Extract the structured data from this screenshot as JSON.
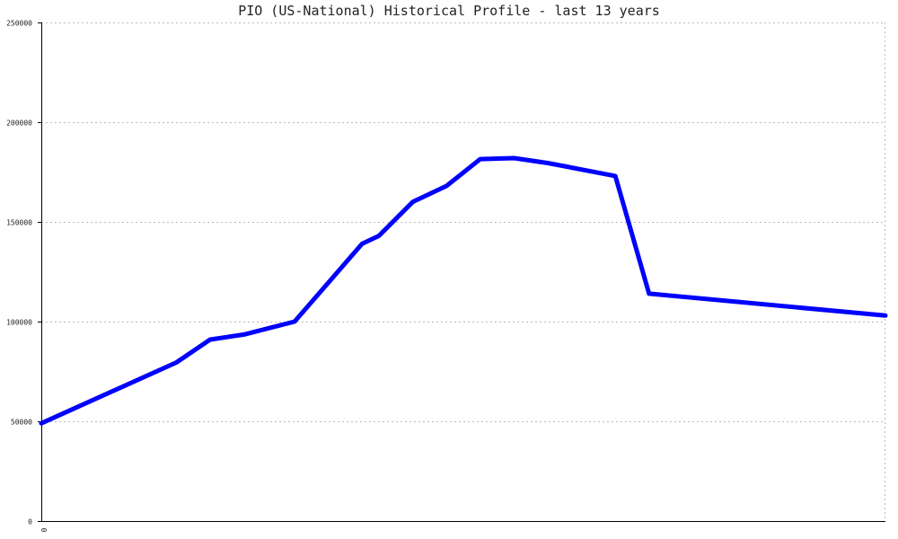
{
  "chart_data": {
    "type": "line",
    "title": "PIO (US-National) Historical Profile - last 13 years",
    "xlabel": "",
    "ylabel": "",
    "ylim": [
      0,
      250000
    ],
    "y_ticks": [
      0,
      50000,
      100000,
      150000,
      200000,
      250000
    ],
    "y_tick_labels": [
      "0",
      "50000",
      "100000",
      "150000",
      "200000",
      "250000"
    ],
    "x_tick_labels": [
      "0"
    ],
    "grid": true,
    "series": [
      {
        "color": "#0000ff",
        "x": [
          0,
          0.16,
          0.2,
          0.24,
          0.3,
          0.38,
          0.4,
          0.44,
          0.48,
          0.52,
          0.56,
          0.6,
          0.68,
          0.72,
          1.0
        ],
        "values": [
          49000,
          79500,
          91000,
          93500,
          100000,
          139000,
          143000,
          160000,
          168000,
          181500,
          182000,
          179500,
          173000,
          114000,
          103000
        ]
      }
    ],
    "colors": {
      "line": "#0000ff",
      "grid": "#bbbbbb",
      "axis": "#000000"
    }
  }
}
